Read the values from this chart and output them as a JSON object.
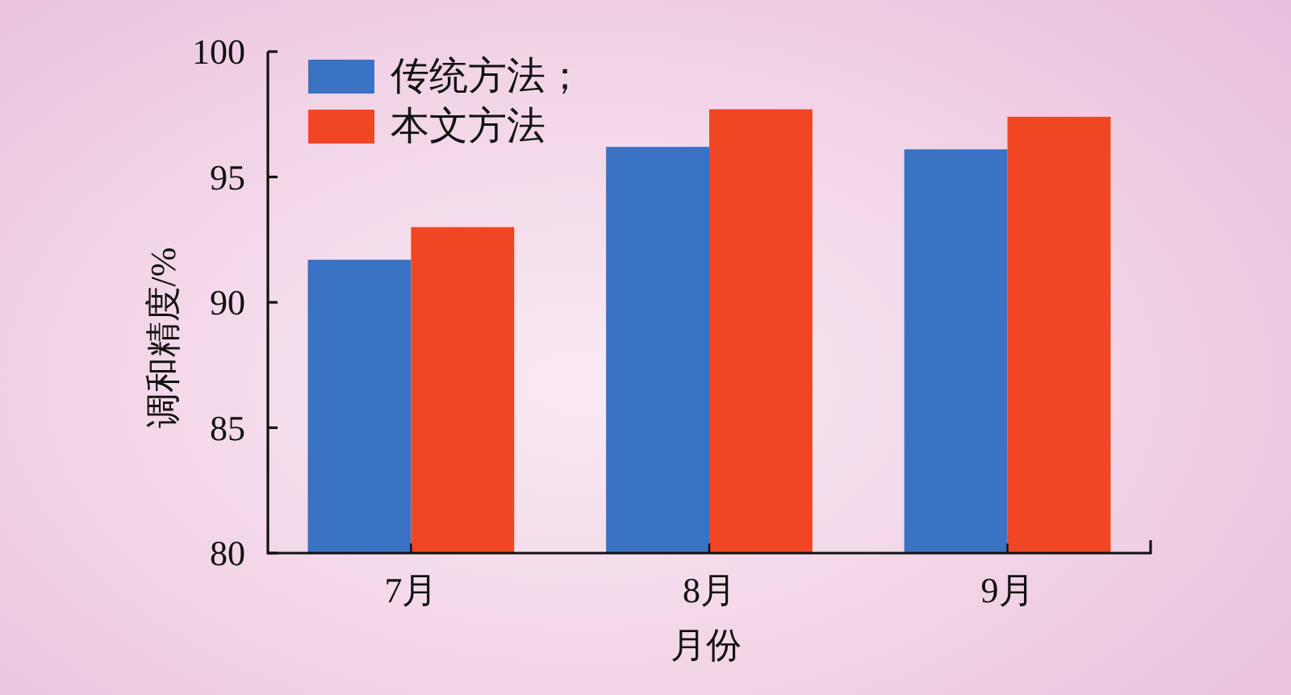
{
  "chart_data": {
    "type": "bar",
    "xlabel": "月份",
    "ylabel": "调和精度/%",
    "categories": [
      "7月",
      "8月",
      "9月"
    ],
    "series": [
      {
        "name": "传统方法；",
        "color": "#3a72c4",
        "values": [
          91.7,
          96.2,
          96.1
        ]
      },
      {
        "name": "本文方法",
        "color": "#f04624",
        "values": [
          93.0,
          97.7,
          97.4
        ]
      }
    ],
    "ylim": [
      80,
      100
    ],
    "yticks": [
      80,
      85,
      90,
      95,
      100
    ],
    "grid": false,
    "legend": "top left"
  }
}
